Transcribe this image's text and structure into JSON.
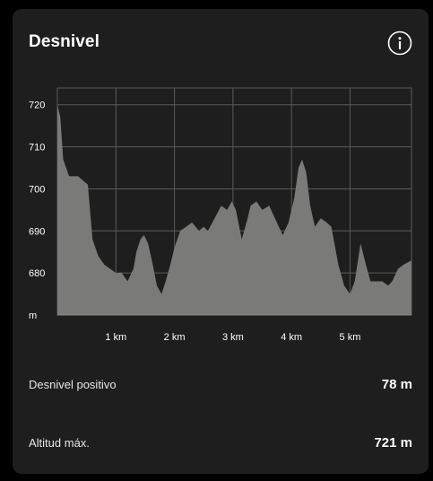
{
  "header": {
    "title": "Desnivel",
    "info_icon": "info-circle-icon"
  },
  "colors": {
    "card_background": "#1e1e1e",
    "area_fill": "#7a7a78",
    "grid": "#5a5a5a",
    "text": "#ffffff"
  },
  "chart_data": {
    "type": "area",
    "title": "",
    "xlabel": "",
    "ylabel": "",
    "x_unit": "km",
    "y_unit": "m",
    "xlim": [
      0,
      6.05
    ],
    "ylim": [
      670,
      724
    ],
    "x_ticks": [
      1,
      2,
      3,
      4,
      5
    ],
    "x_tick_labels": [
      "1 km",
      "2 km",
      "3 km",
      "4 km",
      "5 km"
    ],
    "y_ticks": [
      670,
      680,
      690,
      700,
      710,
      720
    ],
    "y_tick_labels": [
      "m",
      "680",
      "690",
      "700",
      "710",
      "720"
    ],
    "grid": true,
    "x": [
      0,
      0.05,
      0.1,
      0.2,
      0.28,
      0.35,
      0.52,
      0.6,
      0.7,
      0.8,
      0.9,
      1.0,
      1.1,
      1.2,
      1.3,
      1.35,
      1.42,
      1.48,
      1.55,
      1.63,
      1.7,
      1.78,
      1.85,
      1.93,
      2.0,
      2.1,
      2.2,
      2.3,
      2.42,
      2.5,
      2.57,
      2.65,
      2.8,
      2.9,
      2.98,
      3.05,
      3.15,
      3.25,
      3.3,
      3.4,
      3.5,
      3.62,
      3.75,
      3.85,
      3.95,
      4.05,
      4.12,
      4.18,
      4.25,
      4.32,
      4.4,
      4.5,
      4.6,
      4.68,
      4.8,
      4.9,
      5.0,
      5.08,
      5.18,
      5.27,
      5.35,
      5.45,
      5.55,
      5.65,
      5.72,
      5.82,
      5.92,
      6.05
    ],
    "values": [
      720,
      717,
      707,
      703,
      703,
      703,
      701,
      688,
      684,
      682,
      681,
      680,
      680,
      678,
      681,
      685,
      688,
      689,
      687,
      682,
      677,
      675,
      678,
      682,
      686,
      690,
      691,
      692,
      690,
      691,
      690,
      692,
      696,
      695,
      697,
      695,
      688,
      693,
      696,
      697,
      695,
      696,
      692,
      689,
      692,
      698,
      705,
      707,
      704,
      696,
      691,
      693,
      692,
      691,
      682,
      677,
      675,
      678,
      687,
      682,
      678,
      678,
      678,
      677,
      678,
      681,
      682,
      683
    ]
  },
  "stats": [
    {
      "label": "Desnivel positivo",
      "value": "78 m"
    },
    {
      "label": "Altitud máx.",
      "value": "721 m"
    }
  ]
}
